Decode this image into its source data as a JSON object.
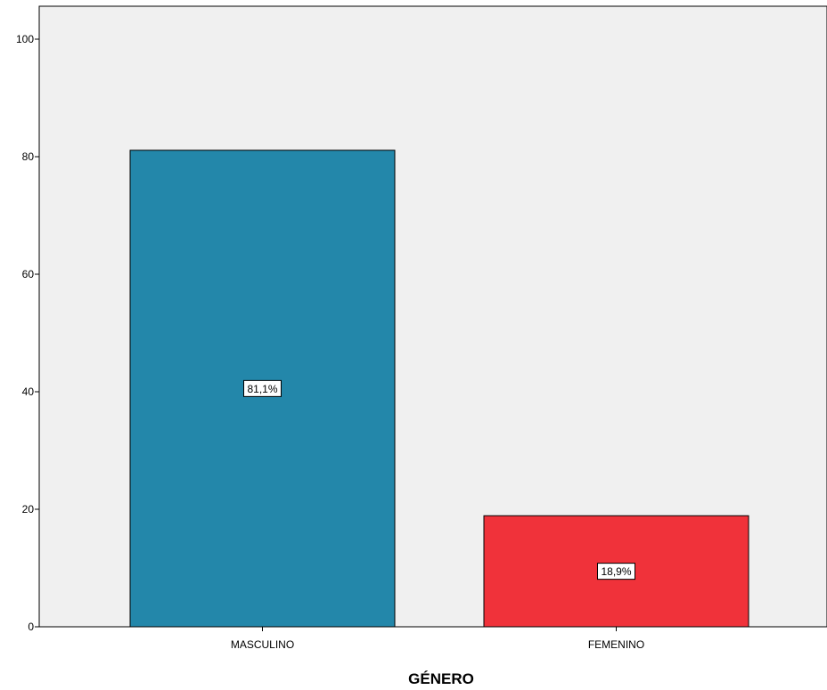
{
  "chart_data": {
    "type": "bar",
    "categories": [
      "MASCULINO",
      "FEMENINO"
    ],
    "values": [
      81.1,
      18.9
    ],
    "data_labels": [
      "81,1%",
      "18,9%"
    ],
    "bar_colors": [
      "#2387aa",
      "#f0323a"
    ],
    "xlabel": "GÉNERO",
    "ylabel": "",
    "ylim": [
      0,
      100
    ],
    "yticks": [
      0,
      20,
      40,
      60,
      80,
      100
    ],
    "ytick_labels": [
      "0",
      "20",
      "40",
      "60",
      "80",
      "100"
    ],
    "plot_background": "#f0f0f0",
    "grid": false,
    "legend": "none"
  }
}
